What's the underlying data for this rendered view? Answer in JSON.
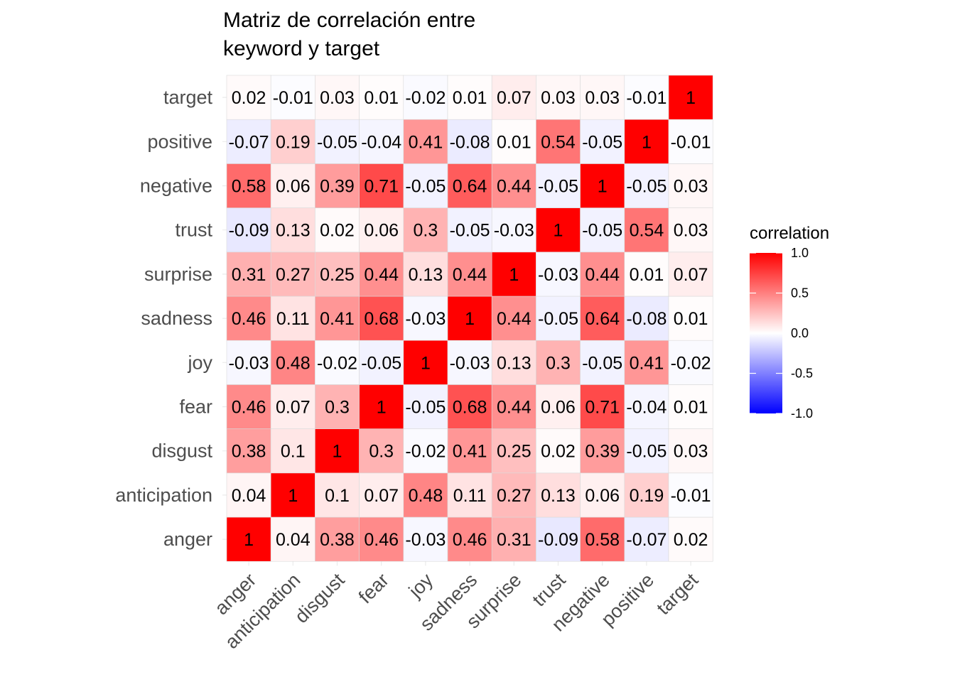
{
  "chart_data": {
    "type": "heatmap",
    "title_lines": [
      "Matriz de correlación entre",
      "keyword y target"
    ],
    "xlabel": "",
    "ylabel": "",
    "variables": [
      "anger",
      "anticipation",
      "disgust",
      "fear",
      "joy",
      "sadness",
      "surprise",
      "trust",
      "negative",
      "positive",
      "target"
    ],
    "matrix": [
      [
        1,
        0.04,
        0.38,
        0.46,
        -0.03,
        0.46,
        0.31,
        -0.09,
        0.58,
        -0.07,
        0.02
      ],
      [
        0.04,
        1,
        0.1,
        0.07,
        0.48,
        0.11,
        0.27,
        0.13,
        0.06,
        0.19,
        -0.01
      ],
      [
        0.38,
        0.1,
        1,
        0.3,
        -0.02,
        0.41,
        0.25,
        0.02,
        0.39,
        -0.05,
        0.03
      ],
      [
        0.46,
        0.07,
        0.3,
        1,
        -0.05,
        0.68,
        0.44,
        0.06,
        0.71,
        -0.04,
        0.01
      ],
      [
        -0.03,
        0.48,
        -0.02,
        -0.05,
        1,
        -0.03,
        0.13,
        0.3,
        -0.05,
        0.41,
        -0.02
      ],
      [
        0.46,
        0.11,
        0.41,
        0.68,
        -0.03,
        1,
        0.44,
        -0.05,
        0.64,
        -0.08,
        0.01
      ],
      [
        0.31,
        0.27,
        0.25,
        0.44,
        0.13,
        0.44,
        1,
        -0.03,
        0.44,
        0.01,
        0.07
      ],
      [
        -0.09,
        0.13,
        0.02,
        0.06,
        0.3,
        -0.05,
        -0.03,
        1,
        -0.05,
        0.54,
        0.03
      ],
      [
        0.58,
        0.06,
        0.39,
        0.71,
        -0.05,
        0.64,
        0.44,
        -0.05,
        1,
        -0.05,
        0.03
      ],
      [
        -0.07,
        0.19,
        -0.05,
        -0.04,
        0.41,
        -0.08,
        0.01,
        0.54,
        -0.05,
        1,
        -0.01
      ],
      [
        0.02,
        -0.01,
        0.03,
        0.01,
        -0.02,
        0.01,
        0.07,
        0.03,
        0.03,
        -0.01,
        1
      ]
    ],
    "legend": {
      "title": "correlation",
      "position": "right",
      "range": [
        -1.0,
        1.0
      ],
      "ticks": [
        "1.0",
        "0.5",
        "0.0",
        "-0.5",
        "-1.0"
      ],
      "tick_values": [
        1.0,
        0.5,
        0.0,
        -0.5,
        -1.0
      ],
      "low_color": "#0000ff",
      "mid_color": "#ffffff",
      "high_color": "#ff0000"
    },
    "grid": true
  }
}
